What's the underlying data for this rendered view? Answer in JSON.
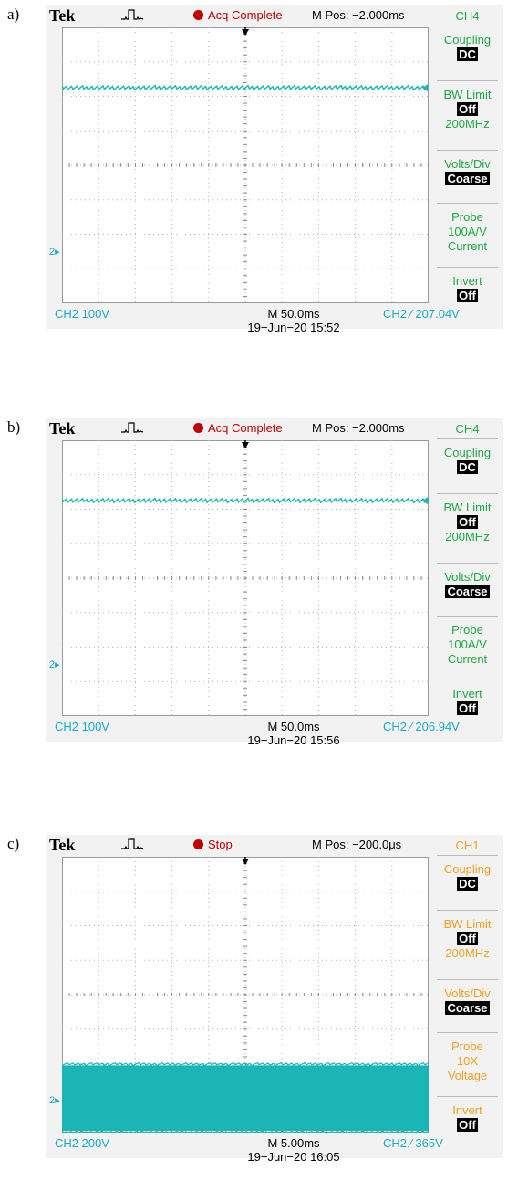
{
  "colors": {
    "trace": "#1bb5b5",
    "ch2_text": "#17a9c9",
    "ch4_menu": "#1ea842",
    "ch1_menu": "#f0a020",
    "status_red": "#c00000",
    "grid": "#b5b5b5"
  },
  "panels": [
    {
      "label": "a)",
      "brand": "Tek",
      "status": "Acq Complete",
      "mpos": "M Pos: −2.000ms",
      "menu": {
        "title": "CH4",
        "coupling": "Coupling",
        "coupling_val": "DC",
        "bw": "BW Limit",
        "bw_val": "Off",
        "bw_freq": "200MHz",
        "vdiv": "Volts/Div",
        "vdiv_val": "Coarse",
        "probe": "Probe",
        "probe_scale": "100A/V",
        "probe_type": "Current",
        "invert": "Invert",
        "invert_val": "Off"
      },
      "ch_scale": "CH2 100V",
      "timebase": "M 50.0ms",
      "trigger": "CH2 ∕ 207.04V",
      "datetime": "19−Jun−20 15:52",
      "ch_marker": "2",
      "trace_level_div": 6.25,
      "trace_band_div": 0.08
    },
    {
      "label": "b)",
      "brand": "Tek",
      "status": "Acq Complete",
      "mpos": "M Pos: −2.000ms",
      "menu": {
        "title": "CH4",
        "coupling": "Coupling",
        "coupling_val": "DC",
        "bw": "BW Limit",
        "bw_val": "Off",
        "bw_freq": "200MHz",
        "vdiv": "Volts/Div",
        "vdiv_val": "Coarse",
        "probe": "Probe",
        "probe_scale": "100A/V",
        "probe_type": "Current",
        "invert": "Invert",
        "invert_val": "Off"
      },
      "ch_scale": "CH2 100V",
      "timebase": "M 50.0ms",
      "trigger": "CH2 ∕ 206.94V",
      "datetime": "19−Jun−20 15:56",
      "ch_marker": "2",
      "trace_level_div": 6.25,
      "trace_band_div": 0.08
    },
    {
      "label": "c)",
      "brand": "Tek",
      "status": "Stop",
      "mpos": "M Pos: −200.0μs",
      "menu": {
        "title": "CH1",
        "coupling": "Coupling",
        "coupling_val": "DC",
        "bw": "BW Limit",
        "bw_val": "Off",
        "bw_freq": "200MHz",
        "vdiv": "Volts/Div",
        "vdiv_val": "Coarse",
        "probe": "Probe",
        "probe_scale": "10X",
        "probe_type": "Voltage",
        "invert": "Invert",
        "invert_val": "Off"
      },
      "ch_scale": "CH2 200V",
      "timebase": "M 5.00ms",
      "trigger": "CH2 ∕ 365V",
      "datetime": "19−Jun−20 16:05",
      "ch_marker": "2",
      "trace_level_div": 1.0,
      "trace_band_div": 1.9
    }
  ]
}
